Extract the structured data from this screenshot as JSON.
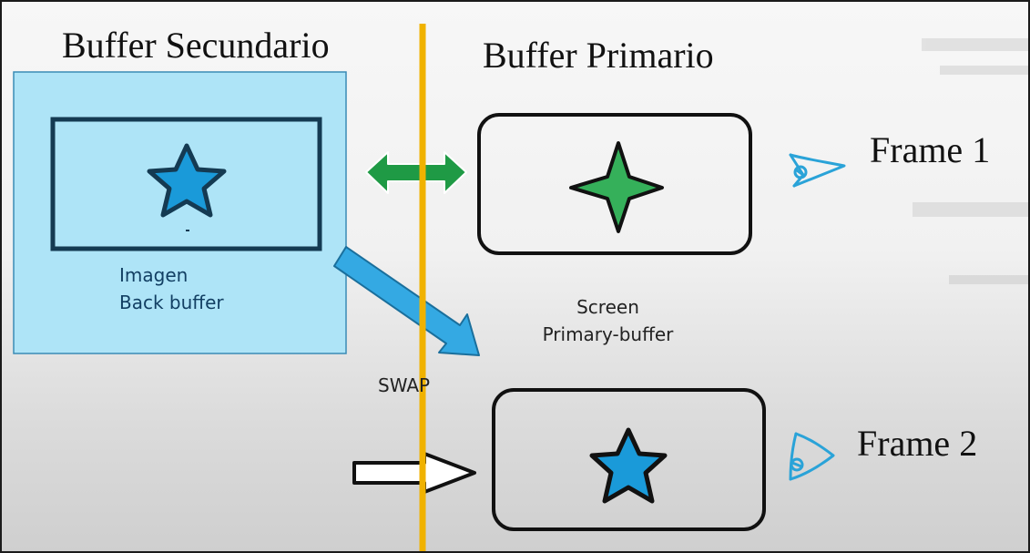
{
  "titles": {
    "secondary": "Buffer Secundario",
    "primary": "Buffer Primario",
    "frame1": "Frame 1",
    "frame2": "Frame 2"
  },
  "back_buffer": {
    "line1": "Imagen",
    "line2": "Back buffer"
  },
  "screen": {
    "line1": "Screen",
    "line2": "Primary-buffer"
  },
  "swap_label": "SWAP",
  "colors": {
    "back_panel": "#aee4f7",
    "back_panel_border": "#3a8bb5",
    "frame_border": "#143a52",
    "divider": "#f0b200",
    "blue_star": "#1a9ad9",
    "green_star": "#35b05a",
    "green_arrow": "#1f9a45",
    "blue_arrow": "#34a9e3",
    "eye": "#2aa3d8"
  },
  "icons": [
    "blue-star-icon",
    "green-four-point-star-icon",
    "eye-icon"
  ]
}
